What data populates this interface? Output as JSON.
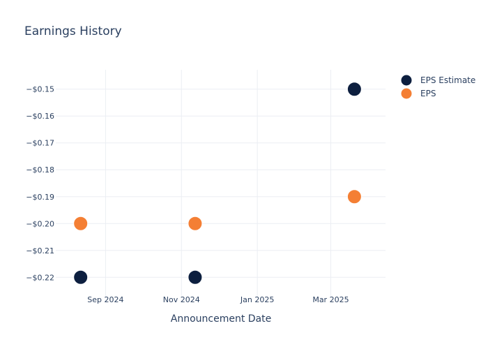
{
  "chart_data": {
    "type": "scatter",
    "title": "Earnings History",
    "xlabel": "Announcement Date",
    "ylabel": "",
    "x_axis_type": "date",
    "x_ticks": [
      {
        "date": "2024-09-01",
        "label": "Sep 2024"
      },
      {
        "date": "2024-11-01",
        "label": "Nov 2024"
      },
      {
        "date": "2025-01-01",
        "label": "Jan 2025"
      },
      {
        "date": "2025-03-01",
        "label": "Mar 2025"
      }
    ],
    "y_ticks": [
      {
        "value": -0.15,
        "label": "−$0.15"
      },
      {
        "value": -0.16,
        "label": "−$0.16"
      },
      {
        "value": -0.17,
        "label": "−$0.17"
      },
      {
        "value": -0.18,
        "label": "−$0.18"
      },
      {
        "value": -0.19,
        "label": "−$0.19"
      },
      {
        "value": -0.2,
        "label": "−$0.20"
      },
      {
        "value": -0.21,
        "label": "−$0.21"
      },
      {
        "value": -0.22,
        "label": "−$0.22"
      }
    ],
    "xlim": [
      "2024-07-23",
      "2025-04-14"
    ],
    "ylim": [
      -0.2272,
      -0.1428
    ],
    "grid": true,
    "legend_position": "top-right",
    "series": [
      {
        "name": "EPS Estimate",
        "color": "#0d1f3f",
        "points": [
          {
            "x": "2024-08-12",
            "y": -0.22
          },
          {
            "x": "2024-11-12",
            "y": -0.22
          },
          {
            "x": "2025-03-20",
            "y": -0.15
          }
        ]
      },
      {
        "name": "EPS",
        "color": "#f47f34",
        "points": [
          {
            "x": "2024-08-12",
            "y": -0.2
          },
          {
            "x": "2024-11-12",
            "y": -0.2
          },
          {
            "x": "2025-03-20",
            "y": -0.19
          }
        ]
      }
    ]
  }
}
